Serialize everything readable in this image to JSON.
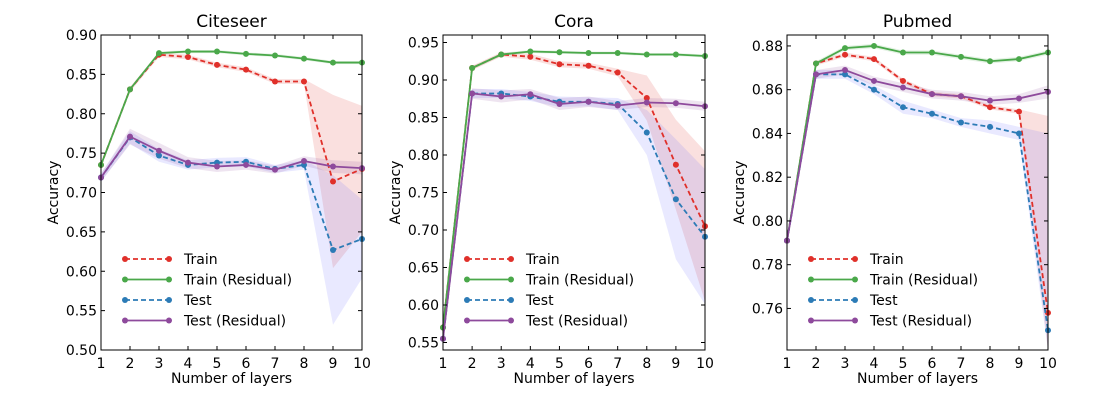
{
  "colors": {
    "train": "#e0302a",
    "train_residual": "#4aa84a",
    "test": "#2c7bb6",
    "test_residual": "#8e4a9c"
  },
  "chart_data": [
    {
      "type": "line",
      "title": "Citeseer",
      "xlabel": "Number of layers",
      "ylabel": "Accuracy",
      "x": [
        1,
        2,
        3,
        4,
        5,
        6,
        7,
        8,
        9,
        10
      ],
      "xticks": [
        "1",
        "2",
        "3",
        "4",
        "5",
        "6",
        "7",
        "8",
        "9",
        "10"
      ],
      "ylim": [
        0.5,
        0.9
      ],
      "yticks": [
        "0.50",
        "0.55",
        "0.60",
        "0.65",
        "0.70",
        "0.75",
        "0.80",
        "0.85",
        "0.90"
      ],
      "legend": "lower-left",
      "series": [
        {
          "name": "Train",
          "key": "train",
          "dashed": true,
          "values": [
            0.735,
            0.831,
            0.875,
            0.872,
            0.862,
            0.856,
            0.841,
            0.841,
            0.714,
            0.73
          ],
          "std": [
            0.003,
            0.003,
            0.003,
            0.003,
            0.003,
            0.003,
            0.003,
            0.003,
            0.11,
            0.08
          ]
        },
        {
          "name": "Train (Residual)",
          "key": "train_residual",
          "dashed": false,
          "values": [
            0.735,
            0.831,
            0.877,
            0.879,
            0.879,
            0.876,
            0.874,
            0.87,
            0.865,
            0.865
          ],
          "std": [
            0.002,
            0.002,
            0.002,
            0.002,
            0.002,
            0.002,
            0.002,
            0.002,
            0.002,
            0.002
          ]
        },
        {
          "name": "Test",
          "key": "test",
          "dashed": true,
          "values": [
            0.719,
            0.77,
            0.747,
            0.735,
            0.738,
            0.739,
            0.73,
            0.735,
            0.627,
            0.641
          ],
          "std": [
            0.005,
            0.008,
            0.008,
            0.006,
            0.006,
            0.006,
            0.005,
            0.006,
            0.095,
            0.05
          ]
        },
        {
          "name": "Test (Residual)",
          "key": "test_residual",
          "dashed": false,
          "values": [
            0.719,
            0.771,
            0.753,
            0.738,
            0.733,
            0.735,
            0.729,
            0.74,
            0.733,
            0.731
          ],
          "std": [
            0.005,
            0.01,
            0.01,
            0.007,
            0.007,
            0.006,
            0.005,
            0.006,
            0.008,
            0.008
          ]
        }
      ]
    },
    {
      "type": "line",
      "title": "Cora",
      "xlabel": "Number of layers",
      "ylabel": "Accuracy",
      "x": [
        1,
        2,
        3,
        4,
        5,
        6,
        7,
        8,
        9,
        10
      ],
      "xticks": [
        "1",
        "2",
        "3",
        "4",
        "5",
        "6",
        "7",
        "8",
        "9",
        "10"
      ],
      "ylim": [
        0.54,
        0.96
      ],
      "yticks": [
        "0.55",
        "0.60",
        "0.65",
        "0.70",
        "0.75",
        "0.80",
        "0.85",
        "0.90",
        "0.95"
      ],
      "legend": "lower-left",
      "series": [
        {
          "name": "Train",
          "key": "train",
          "dashed": true,
          "values": [
            0.57,
            0.916,
            0.934,
            0.931,
            0.921,
            0.919,
            0.91,
            0.876,
            0.787,
            0.705
          ],
          "std": [
            0.003,
            0.003,
            0.003,
            0.004,
            0.004,
            0.004,
            0.005,
            0.03,
            0.06,
            0.1
          ]
        },
        {
          "name": "Train (Residual)",
          "key": "train_residual",
          "dashed": false,
          "values": [
            0.57,
            0.916,
            0.934,
            0.938,
            0.937,
            0.936,
            0.936,
            0.934,
            0.934,
            0.932
          ],
          "std": [
            0.002,
            0.002,
            0.002,
            0.002,
            0.002,
            0.002,
            0.002,
            0.002,
            0.002,
            0.002
          ]
        },
        {
          "name": "Test",
          "key": "test",
          "dashed": true,
          "values": [
            0.555,
            0.882,
            0.882,
            0.878,
            0.871,
            0.871,
            0.868,
            0.83,
            0.741,
            0.691
          ],
          "std": [
            0.005,
            0.006,
            0.006,
            0.006,
            0.007,
            0.006,
            0.008,
            0.03,
            0.08,
            0.09
          ]
        },
        {
          "name": "Test (Residual)",
          "key": "test_residual",
          "dashed": false,
          "values": [
            0.555,
            0.882,
            0.878,
            0.881,
            0.868,
            0.871,
            0.866,
            0.87,
            0.869,
            0.865
          ],
          "std": [
            0.005,
            0.007,
            0.008,
            0.007,
            0.008,
            0.007,
            0.006,
            0.006,
            0.006,
            0.006
          ]
        }
      ]
    },
    {
      "type": "line",
      "title": "Pubmed",
      "xlabel": "Number of layers",
      "ylabel": "Accuracy",
      "x": [
        1,
        2,
        3,
        4,
        5,
        6,
        7,
        8,
        9,
        10
      ],
      "xticks": [
        "1",
        "2",
        "3",
        "4",
        "5",
        "6",
        "7",
        "8",
        "9",
        "10"
      ],
      "ylim": [
        0.741,
        0.885
      ],
      "yticks": [
        "0.76",
        "0.78",
        "0.80",
        "0.82",
        "0.84",
        "0.86",
        "0.88"
      ],
      "legend": "lower-left",
      "series": [
        {
          "name": "Train",
          "key": "train",
          "dashed": true,
          "values": [
            0.791,
            0.872,
            0.876,
            0.874,
            0.864,
            0.858,
            0.857,
            0.852,
            0.85,
            0.758
          ],
          "std": [
            0.001,
            0.001,
            0.001,
            0.001,
            0.001,
            0.001,
            0.001,
            0.001,
            0.001,
            0.09
          ]
        },
        {
          "name": "Train (Residual)",
          "key": "train_residual",
          "dashed": false,
          "values": [
            0.791,
            0.872,
            0.879,
            0.88,
            0.877,
            0.877,
            0.875,
            0.873,
            0.874,
            0.877
          ],
          "std": [
            0.001,
            0.001,
            0.001,
            0.001,
            0.001,
            0.001,
            0.001,
            0.001,
            0.001,
            0.001
          ]
        },
        {
          "name": "Test",
          "key": "test",
          "dashed": true,
          "values": [
            0.791,
            0.867,
            0.867,
            0.86,
            0.852,
            0.849,
            0.845,
            0.843,
            0.84,
            0.75
          ],
          "std": [
            0.001,
            0.002,
            0.002,
            0.002,
            0.003,
            0.002,
            0.002,
            0.003,
            0.003,
            0.09
          ]
        },
        {
          "name": "Test (Residual)",
          "key": "test_residual",
          "dashed": false,
          "values": [
            0.791,
            0.867,
            0.869,
            0.864,
            0.861,
            0.858,
            0.857,
            0.855,
            0.856,
            0.859
          ],
          "std": [
            0.001,
            0.002,
            0.002,
            0.002,
            0.002,
            0.002,
            0.002,
            0.002,
            0.002,
            0.003
          ]
        }
      ]
    }
  ]
}
